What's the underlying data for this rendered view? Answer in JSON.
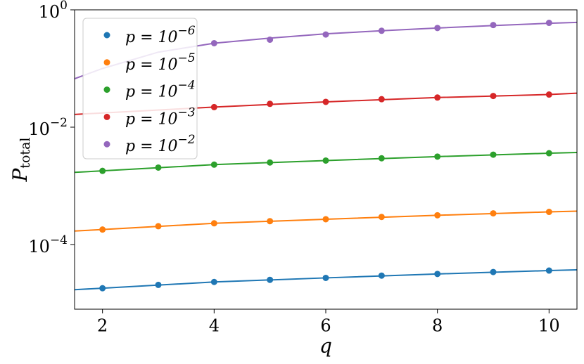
{
  "chart_data": {
    "type": "scatter",
    "xlabel": "q",
    "ylabel": {
      "base": "P",
      "subscript": "total"
    },
    "xlim": [
      1.5,
      10.5
    ],
    "xticks": [
      2,
      4,
      6,
      8,
      10
    ],
    "ylim": [
      7.9e-06,
      1
    ],
    "log_y": true,
    "yticks": [
      {
        "value": 1,
        "label": {
          "base": "10",
          "exponent": "0"
        }
      },
      {
        "value": 0.01,
        "label": {
          "base": "10",
          "exponent": "−2"
        }
      },
      {
        "value": 0.0001,
        "label": {
          "base": "10",
          "exponent": "−4"
        }
      }
    ],
    "legend": "upper left",
    "series": [
      {
        "name": {
          "base": "p = 10",
          "exponent": "−6"
        },
        "color": "#1f77b4",
        "x": [
          2,
          3,
          4,
          5,
          6,
          7,
          8,
          9,
          10
        ],
        "values": [
          1.8e-05,
          2.05e-05,
          2.3e-05,
          2.5e-05,
          2.7e-05,
          2.95e-05,
          3.15e-05,
          3.4e-05,
          3.6e-05
        ],
        "fit_x": [
          1.5,
          2,
          4,
          6,
          8,
          10,
          10.5
        ],
        "fit_values": [
          1.7e-05,
          1.8e-05,
          2.3e-05,
          2.7e-05,
          3.15e-05,
          3.6e-05,
          3.7e-05
        ]
      },
      {
        "name": {
          "base": "p = 10",
          "exponent": "−5"
        },
        "color": "#ff7f0e",
        "x": [
          2,
          3,
          4,
          5,
          6,
          7,
          8,
          9,
          10
        ],
        "values": [
          0.00018,
          0.000205,
          0.00023,
          0.00025,
          0.00027,
          0.000295,
          0.000315,
          0.00034,
          0.00036
        ],
        "fit_x": [
          1.5,
          2,
          4,
          6,
          8,
          10,
          10.5
        ],
        "fit_values": [
          0.00017,
          0.00018,
          0.00023,
          0.00027,
          0.000315,
          0.00036,
          0.00037
        ]
      },
      {
        "name": {
          "base": "p = 10",
          "exponent": "−4"
        },
        "color": "#2ca02c",
        "x": [
          2,
          3,
          4,
          5,
          6,
          7,
          8,
          9,
          10
        ],
        "values": [
          0.0018,
          0.00205,
          0.0023,
          0.0025,
          0.0027,
          0.00295,
          0.00315,
          0.0034,
          0.0036
        ],
        "fit_x": [
          1.5,
          2,
          4,
          6,
          8,
          10,
          10.5
        ],
        "fit_values": [
          0.0017,
          0.0018,
          0.0023,
          0.0027,
          0.00315,
          0.0036,
          0.0037
        ]
      },
      {
        "name": {
          "base": "p = 10",
          "exponent": "−3"
        },
        "color": "#d62728",
        "x": [
          4,
          5,
          6,
          7,
          8,
          9,
          10
        ],
        "values": [
          0.022,
          0.025,
          0.027,
          0.03,
          0.032,
          0.034,
          0.036
        ],
        "fit_x": [
          1.5,
          4,
          6,
          8,
          10,
          10.5
        ],
        "fit_values": [
          0.0165,
          0.022,
          0.027,
          0.032,
          0.036,
          0.038
        ]
      },
      {
        "name": {
          "base": "p = 10",
          "exponent": "−2"
        },
        "color": "#9467bd",
        "x": [
          4,
          5,
          6,
          7,
          8,
          9,
          10
        ],
        "values": [
          0.27,
          0.31,
          0.38,
          0.44,
          0.49,
          0.55,
          0.6
        ],
        "fit_x": [
          1.5,
          2,
          3,
          4,
          5,
          6,
          7,
          8,
          9,
          10,
          10.5
        ],
        "fit_values": [
          0.067,
          0.1,
          0.19,
          0.27,
          0.33,
          0.39,
          0.44,
          0.49,
          0.54,
          0.59,
          0.61
        ]
      }
    ]
  }
}
